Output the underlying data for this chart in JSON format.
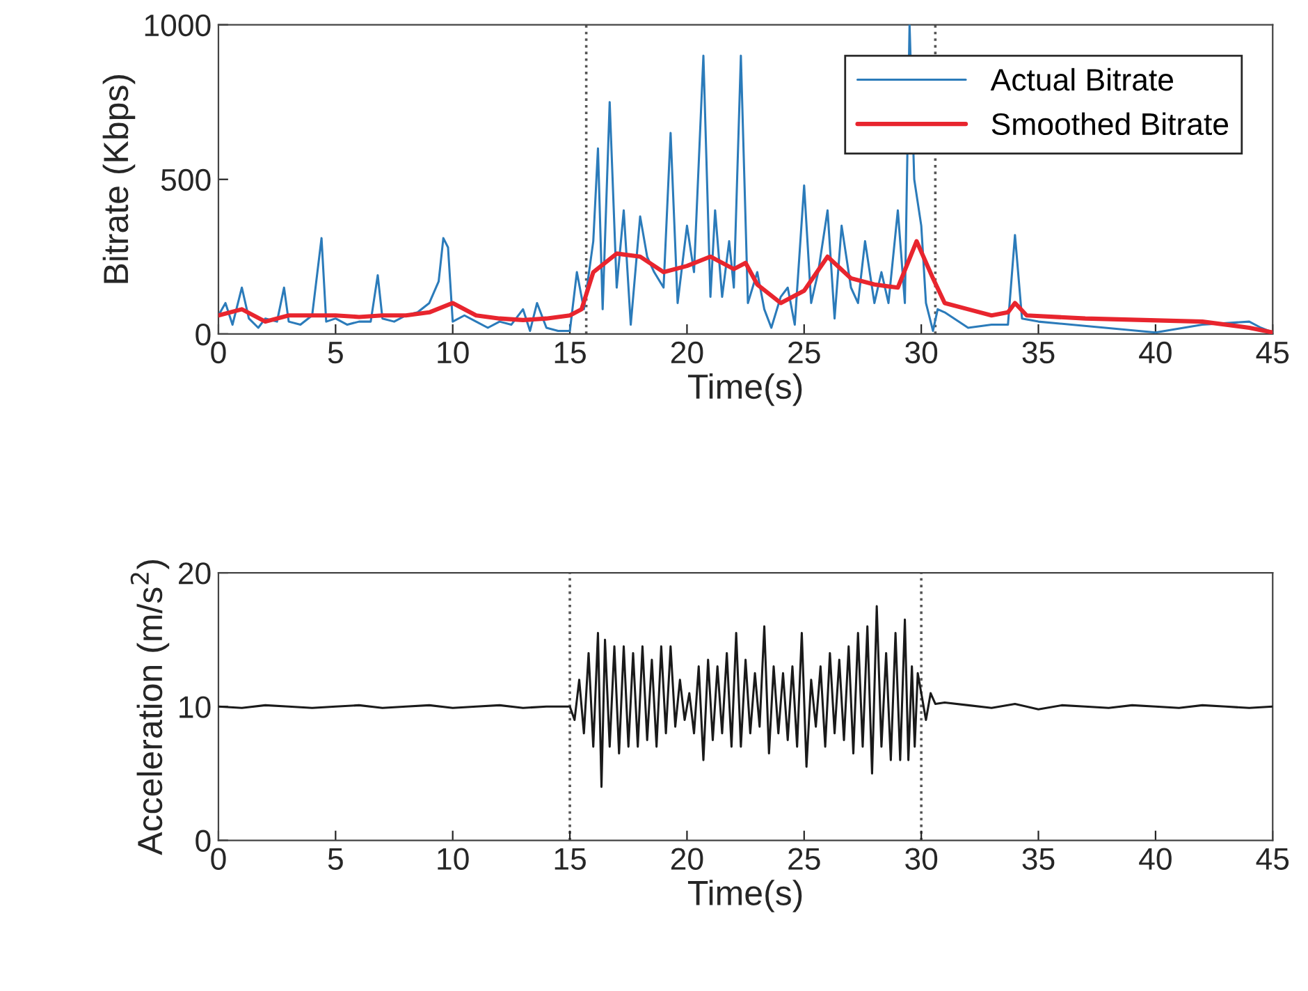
{
  "chart_data": [
    {
      "type": "line",
      "xlabel": "Time(s)",
      "ylabel": "Bitrate (Kbps)",
      "xlim": [
        0,
        45
      ],
      "ylim": [
        0,
        1000
      ],
      "xticks": [
        0,
        5,
        10,
        15,
        20,
        25,
        30,
        35,
        40,
        45
      ],
      "yticks": [
        0,
        500,
        1000
      ],
      "grid": false,
      "legend": "top right",
      "series": [
        {
          "name": "Actual Bitrate",
          "color": "#2b7bba",
          "x": [
            0,
            0.3,
            0.6,
            1,
            1.3,
            1.7,
            2,
            2.5,
            2.8,
            3,
            3.5,
            4,
            4.4,
            4.6,
            5,
            5.5,
            6,
            6.5,
            6.8,
            7,
            7.5,
            8,
            8.5,
            9,
            9.4,
            9.6,
            9.8,
            10,
            10.5,
            11,
            11.5,
            12,
            12.5,
            13,
            13.3,
            13.6,
            14,
            14.5,
            15,
            15.3,
            15.6,
            16,
            16.2,
            16.4,
            16.7,
            17,
            17.3,
            17.6,
            18,
            18.3,
            18.6,
            19,
            19.3,
            19.6,
            20,
            20.3,
            20.7,
            21,
            21.2,
            21.5,
            21.8,
            22,
            22.3,
            22.6,
            23,
            23.3,
            23.6,
            24,
            24.3,
            24.6,
            25,
            25.3,
            25.6,
            26,
            26.3,
            26.6,
            27,
            27.3,
            27.6,
            28,
            28.3,
            28.6,
            29,
            29.3,
            29.5,
            29.7,
            30,
            30.2,
            30.5,
            30.7,
            31,
            32,
            33,
            33.7,
            34,
            34.3,
            35,
            40,
            42,
            44,
            44.5,
            45
          ],
          "values": [
            60,
            100,
            30,
            150,
            50,
            20,
            50,
            40,
            150,
            40,
            30,
            60,
            310,
            40,
            50,
            30,
            40,
            40,
            190,
            50,
            40,
            60,
            70,
            100,
            170,
            310,
            280,
            40,
            60,
            40,
            20,
            40,
            30,
            80,
            10,
            100,
            20,
            10,
            10,
            200,
            80,
            300,
            600,
            80,
            750,
            150,
            400,
            30,
            380,
            250,
            200,
            150,
            650,
            100,
            350,
            200,
            900,
            120,
            400,
            120,
            300,
            150,
            900,
            100,
            200,
            80,
            20,
            120,
            150,
            30,
            480,
            100,
            200,
            400,
            50,
            350,
            150,
            100,
            300,
            100,
            200,
            100,
            400,
            100,
            1000,
            500,
            350,
            100,
            10,
            80,
            70,
            20,
            30,
            30,
            320,
            50,
            40,
            5,
            30,
            40,
            20,
            5
          ]
        },
        {
          "name": "Smoothed Bitrate",
          "color": "#e8252e",
          "x": [
            0,
            1,
            2,
            3,
            4,
            5,
            6,
            7,
            8,
            9,
            10,
            11,
            12,
            13,
            14,
            15,
            15.5,
            16,
            17,
            18,
            19,
            20,
            21,
            22,
            22.5,
            23,
            24,
            25,
            26,
            27,
            28,
            29,
            29.8,
            30.5,
            31,
            32,
            33,
            33.7,
            34,
            34.5,
            37,
            42,
            44,
            45
          ],
          "values": [
            60,
            80,
            40,
            60,
            60,
            60,
            55,
            60,
            60,
            70,
            100,
            60,
            50,
            45,
            50,
            60,
            80,
            200,
            260,
            250,
            200,
            220,
            250,
            210,
            230,
            160,
            100,
            140,
            250,
            180,
            160,
            150,
            300,
            180,
            100,
            80,
            60,
            70,
            100,
            60,
            50,
            40,
            20,
            5
          ]
        }
      ],
      "ref_lines": [
        {
          "axis": "x",
          "value": 15.7,
          "color": "#555555",
          "line_style": "dotted"
        },
        {
          "axis": "x",
          "value": 30.6,
          "color": "#555555",
          "line_style": "dotted"
        }
      ]
    },
    {
      "type": "line",
      "xlabel": "Time(s)",
      "ylabel": "Acceleration (m/s$^{2}$)",
      "xlim": [
        0,
        45
      ],
      "ylim": [
        0,
        20
      ],
      "xticks": [
        0,
        5,
        10,
        15,
        20,
        25,
        30,
        35,
        40,
        45
      ],
      "yticks": [
        0,
        10,
        20
      ],
      "grid": false,
      "legend": false,
      "series": [
        {
          "color": "#1a1a1a",
          "x": [
            0,
            1,
            2,
            3,
            4,
            5,
            6,
            7,
            8,
            9,
            10,
            11,
            12,
            13,
            14,
            15.0,
            15.2,
            15.4,
            15.6,
            15.8,
            16.0,
            16.2,
            16.35,
            16.5,
            16.7,
            16.9,
            17.1,
            17.3,
            17.5,
            17.7,
            17.9,
            18.1,
            18.3,
            18.5,
            18.7,
            18.9,
            19.1,
            19.3,
            19.5,
            19.7,
            19.9,
            20.1,
            20.3,
            20.5,
            20.7,
            20.9,
            21.1,
            21.3,
            21.5,
            21.7,
            21.9,
            22.1,
            22.3,
            22.5,
            22.7,
            22.9,
            23.1,
            23.3,
            23.5,
            23.7,
            23.9,
            24.1,
            24.3,
            24.5,
            24.7,
            24.9,
            25.1,
            25.3,
            25.5,
            25.7,
            25.9,
            26.1,
            26.3,
            26.5,
            26.7,
            26.9,
            27.1,
            27.3,
            27.5,
            27.7,
            27.9,
            28.1,
            28.3,
            28.5,
            28.7,
            28.9,
            29.1,
            29.3,
            29.45,
            29.6,
            29.72,
            29.85,
            30.2,
            30.4,
            30.6,
            31,
            32,
            33,
            34,
            35,
            36,
            37,
            38,
            39,
            40,
            41,
            42,
            43,
            44,
            45
          ],
          "values": [
            10,
            9.9,
            10.1,
            10,
            9.9,
            10,
            10.1,
            9.9,
            10,
            10.1,
            9.9,
            10,
            10.1,
            9.9,
            10,
            10,
            9,
            12,
            8,
            14,
            7,
            15.5,
            4,
            15,
            7,
            14.5,
            6.5,
            14.5,
            7,
            14,
            7,
            14.5,
            7.5,
            13.5,
            7,
            14.5,
            8,
            14.5,
            8.5,
            12,
            9,
            11,
            8,
            13,
            6,
            13.5,
            7.5,
            13,
            8,
            14,
            7,
            15.5,
            7,
            13.5,
            8,
            12.5,
            8.5,
            16,
            6.5,
            13,
            8,
            12.5,
            7.5,
            13,
            7,
            15.5,
            5.5,
            12,
            8.5,
            13,
            7,
            14,
            8,
            13.5,
            7.5,
            14.5,
            6.5,
            15.5,
            7,
            16,
            5,
            17.5,
            7,
            14,
            6,
            15.5,
            6,
            16.5,
            6,
            13,
            7,
            12.5,
            9,
            11,
            10.2,
            10.3,
            10.1,
            9.9,
            10.2,
            9.8,
            10.1,
            10,
            9.9,
            10.1,
            10,
            9.9,
            10.1,
            10,
            9.9,
            10
          ]
        }
      ],
      "ref_lines": [
        {
          "axis": "x",
          "value": 15,
          "color": "#555555",
          "line_style": "dotted"
        },
        {
          "axis": "x",
          "value": 30,
          "color": "#555555",
          "line_style": "dotted"
        }
      ]
    }
  ]
}
